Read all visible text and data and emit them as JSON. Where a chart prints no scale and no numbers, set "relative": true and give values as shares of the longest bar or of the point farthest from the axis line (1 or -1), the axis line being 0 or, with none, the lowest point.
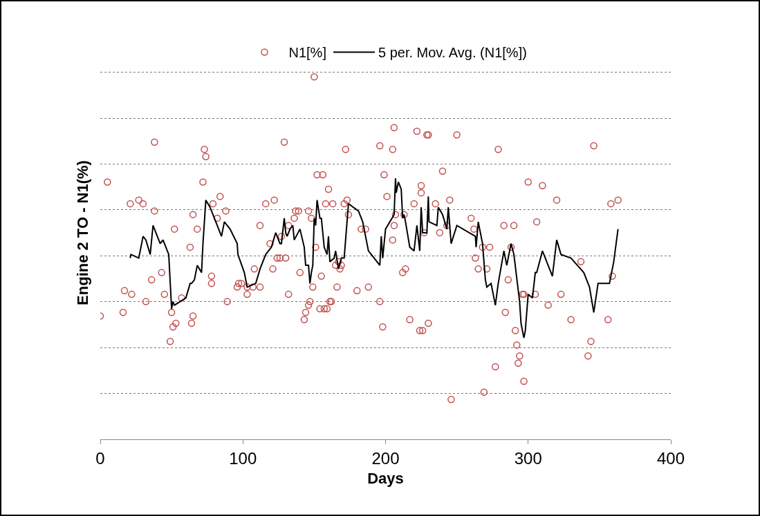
{
  "chart_data": {
    "type": "scatter",
    "ylabel": "Engine 2 TO - N1(%)",
    "xlabel": "Days",
    "relative": true,
    "xlim": [
      0,
      400
    ],
    "xticks": [
      0,
      100,
      200,
      300,
      400
    ],
    "grid": "y",
    "legend": "top",
    "tick_labels": "x",
    "series": [
      {
        "name": "N1[%]",
        "marker": "circle",
        "color": "#c0504d",
        "x": [
          0,
          5,
          16,
          17,
          21,
          22,
          27,
          30,
          32,
          36,
          38,
          38,
          43,
          45,
          49,
          50,
          51,
          52,
          53,
          57,
          63,
          64,
          65,
          65,
          68,
          72,
          73,
          74,
          78,
          78,
          79,
          82,
          84,
          88,
          89,
          96,
          97,
          99,
          103,
          103,
          107,
          108,
          112,
          112,
          116,
          119,
          121,
          122,
          124,
          126,
          127,
          129,
          130,
          132,
          132,
          136,
          137,
          139,
          140,
          143,
          144,
          146,
          146,
          147,
          148,
          149,
          150,
          151,
          152,
          154,
          155,
          156,
          157,
          158,
          159,
          160,
          161,
          162,
          163,
          165,
          166,
          167,
          168,
          169,
          171,
          172,
          173,
          174,
          180,
          183,
          186,
          188,
          196,
          196,
          198,
          199,
          201,
          205,
          205,
          206,
          206,
          207,
          212,
          213,
          214,
          217,
          220,
          222,
          224,
          225,
          225,
          226,
          227,
          229,
          230,
          230,
          235,
          238,
          240,
          243,
          245,
          246,
          250,
          260,
          262,
          263,
          265,
          268,
          269,
          271,
          273,
          277,
          279,
          283,
          284,
          286,
          288,
          290,
          291,
          292,
          293,
          294,
          296,
          297,
          297,
          300,
          305,
          306,
          310,
          314,
          320,
          323,
          330,
          337,
          342,
          344,
          346,
          356,
          358,
          359,
          363
        ],
        "values": [
          0.34,
          0.71,
          0.35,
          0.41,
          0.65,
          0.4,
          0.66,
          0.65,
          0.38,
          0.44,
          0.82,
          0.63,
          0.46,
          0.4,
          0.27,
          0.35,
          0.31,
          0.58,
          0.32,
          0.39,
          0.53,
          0.32,
          0.62,
          0.34,
          0.58,
          0.71,
          0.8,
          0.78,
          0.43,
          0.45,
          0.65,
          0.61,
          0.67,
          0.63,
          0.38,
          0.42,
          0.43,
          0.43,
          0.4,
          0.42,
          0.42,
          0.47,
          0.59,
          0.42,
          0.65,
          0.54,
          0.47,
          0.66,
          0.5,
          0.5,
          0.56,
          0.82,
          0.5,
          0.4,
          0.59,
          0.61,
          0.63,
          0.63,
          0.46,
          0.33,
          0.35,
          0.63,
          0.37,
          0.38,
          0.61,
          0.42,
          1.0,
          0.53,
          0.73,
          0.36,
          0.45,
          0.73,
          0.36,
          0.65,
          0.36,
          0.69,
          0.38,
          0.38,
          0.65,
          0.48,
          0.42,
          0.49,
          0.47,
          0.48,
          0.65,
          0.8,
          0.66,
          0.62,
          0.41,
          0.58,
          0.58,
          0.42,
          0.38,
          0.81,
          0.31,
          0.73,
          0.67,
          0.55,
          0.8,
          0.86,
          0.59,
          0.62,
          0.46,
          0.62,
          0.47,
          0.33,
          0.65,
          0.85,
          0.3,
          0.68,
          0.7,
          0.3,
          0.57,
          0.84,
          0.84,
          0.32,
          0.65,
          0.57,
          0.74,
          0.59,
          0.66,
          0.11,
          0.84,
          0.61,
          0.58,
          0.5,
          0.47,
          0.53,
          0.13,
          0.47,
          0.53,
          0.2,
          0.8,
          0.59,
          0.35,
          0.44,
          0.53,
          0.59,
          0.3,
          0.26,
          0.21,
          0.23,
          0.4,
          0.4,
          0.16,
          0.71,
          0.4,
          0.6,
          0.7,
          0.37,
          0.66,
          0.4,
          0.33,
          0.49,
          0.23,
          0.27,
          0.81,
          0.33,
          0.65,
          0.45,
          0.66
        ]
      },
      {
        "name": "5 per. Mov. Avg. (N1[%])",
        "type": "line",
        "line_style": "solid",
        "color": "#000000",
        "x": [
          21,
          21.5,
          27,
          30,
          32,
          35,
          37,
          42,
          44,
          48,
          50,
          51,
          52,
          60,
          63,
          64,
          66,
          68,
          71,
          72,
          74,
          77,
          79,
          85,
          87,
          91,
          96,
          96.5,
          101,
          103,
          109,
          112,
          116,
          120,
          123,
          126,
          127,
          129,
          130,
          131,
          133,
          135,
          136,
          140,
          143,
          144,
          146,
          147,
          148,
          149,
          150,
          151,
          152,
          154,
          155,
          157,
          159,
          160,
          161,
          164,
          165,
          167,
          169,
          171,
          174,
          181,
          184,
          188,
          196,
          197,
          198,
          200,
          206,
          207,
          207.5,
          209,
          211,
          212,
          213,
          214,
          217,
          220,
          222,
          224,
          225,
          226,
          229,
          230,
          230.5,
          236,
          237,
          240,
          243,
          244,
          246,
          250,
          263,
          263.5,
          265,
          268,
          270,
          271,
          274,
          277,
          279,
          283,
          285,
          288,
          290,
          294,
          295,
          297,
          298,
          300,
          303,
          305,
          306,
          310,
          317,
          320,
          323,
          330,
          339,
          343,
          346,
          349,
          357,
          360,
          363
        ],
        "values": [
          0.5,
          0.51,
          0.5,
          0.56,
          0.55,
          0.51,
          0.59,
          0.54,
          0.55,
          0.51,
          0.36,
          0.38,
          0.37,
          0.39,
          0.43,
          0.43,
          0.44,
          0.48,
          0.46,
          0.54,
          0.66,
          0.64,
          0.62,
          0.56,
          0.6,
          0.58,
          0.54,
          0.51,
          0.46,
          0.42,
          0.43,
          0.47,
          0.51,
          0.53,
          0.57,
          0.54,
          0.54,
          0.61,
          0.57,
          0.56,
          0.58,
          0.59,
          0.55,
          0.58,
          0.53,
          0.48,
          0.48,
          0.43,
          0.46,
          0.48,
          0.61,
          0.59,
          0.66,
          0.61,
          0.61,
          0.53,
          0.51,
          0.56,
          0.49,
          0.5,
          0.52,
          0.47,
          0.5,
          0.5,
          0.65,
          0.63,
          0.6,
          0.52,
          0.48,
          0.56,
          0.5,
          0.58,
          0.62,
          0.72,
          0.68,
          0.71,
          0.69,
          0.61,
          0.62,
          0.6,
          0.53,
          0.52,
          0.59,
          0.52,
          0.64,
          0.57,
          0.57,
          0.67,
          0.6,
          0.59,
          0.64,
          0.62,
          0.58,
          0.64,
          0.54,
          0.59,
          0.56,
          0.53,
          0.6,
          0.54,
          0.44,
          0.42,
          0.43,
          0.37,
          0.43,
          0.52,
          0.48,
          0.54,
          0.51,
          0.38,
          0.32,
          0.28,
          0.3,
          0.4,
          0.39,
          0.46,
          0.46,
          0.52,
          0.45,
          0.55,
          0.51,
          0.5,
          0.46,
          0.42,
          0.35,
          0.43,
          0.43,
          0.49,
          0.58
        ]
      }
    ]
  }
}
